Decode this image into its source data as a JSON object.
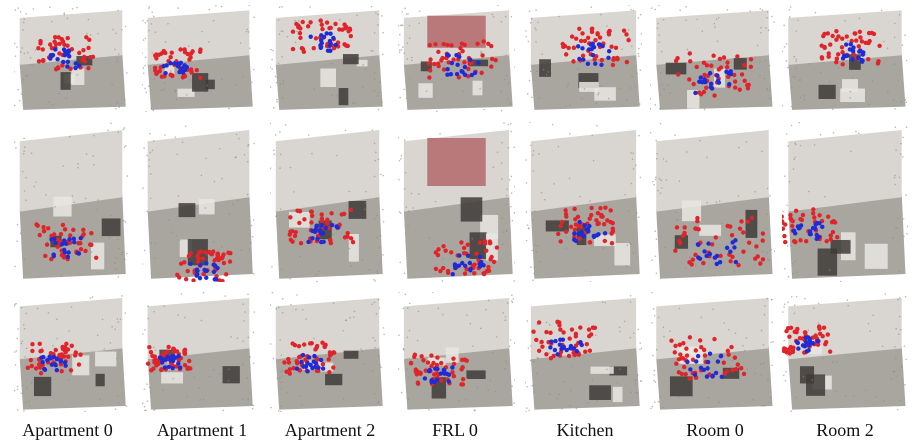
{
  "figure": {
    "columns": [
      {
        "label": "Apartment 0"
      },
      {
        "label": "Apartment 1"
      },
      {
        "label": "Apartment 2"
      },
      {
        "label": "FRL 0"
      },
      {
        "label": "Kitchen"
      },
      {
        "label": "Room 0"
      },
      {
        "label": "Room 2"
      }
    ],
    "rows": 3,
    "point_colors": {
      "red": "#e0242a",
      "blue": "#1f2bd6"
    },
    "scene_colors": {
      "floor": "#9a958e",
      "wall": "#d9d6d1",
      "accent": "#b9797a",
      "dark": "#3f3b38"
    }
  }
}
